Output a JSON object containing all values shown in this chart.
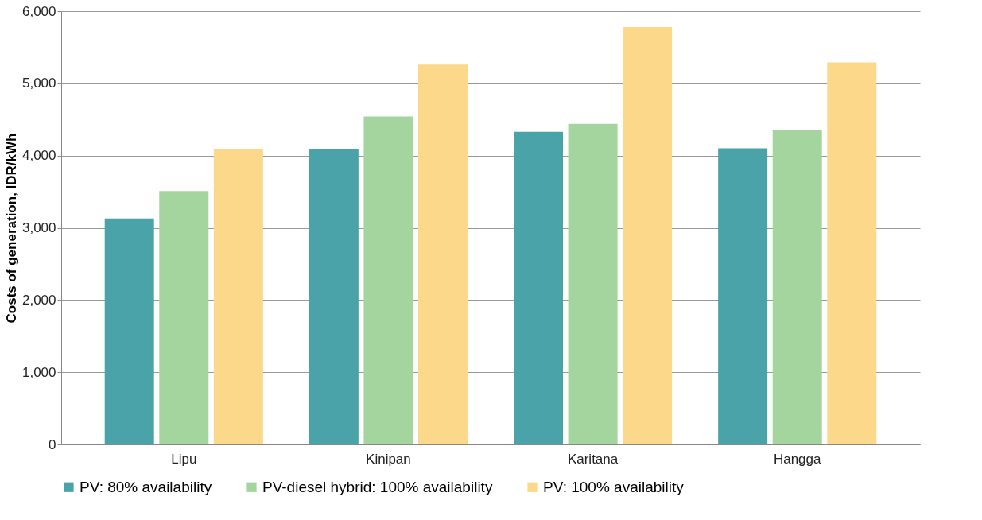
{
  "chart_data": {
    "type": "bar",
    "ylabel": "Costs of generation, IDR/kWh",
    "categories": [
      "Lipu",
      "Kinipan",
      "Karitana",
      "Hangga"
    ],
    "series": [
      {
        "name": "PV: 80% availability",
        "color": "#4aa3a8",
        "values": [
          3130,
          4090,
          4330,
          4100
        ]
      },
      {
        "name": "PV-diesel hybrid: 100% availability",
        "color": "#a5d59e",
        "values": [
          3510,
          4540,
          4440,
          4350
        ]
      },
      {
        "name": "PV: 100% availability",
        "color": "#fcd98a",
        "values": [
          4090,
          5260,
          5780,
          5290
        ]
      }
    ],
    "ylim": [
      0,
      6000
    ],
    "yticks": [
      {
        "value": 0,
        "label": "0"
      },
      {
        "value": 1000,
        "label": "1,000"
      },
      {
        "value": 2000,
        "label": "2,000"
      },
      {
        "value": 3000,
        "label": "3,000"
      },
      {
        "value": 4000,
        "label": "4,000"
      },
      {
        "value": 5000,
        "label": "5,000"
      },
      {
        "value": 6000,
        "label": "6,000"
      }
    ],
    "grid": "y",
    "legend": "bottom"
  }
}
